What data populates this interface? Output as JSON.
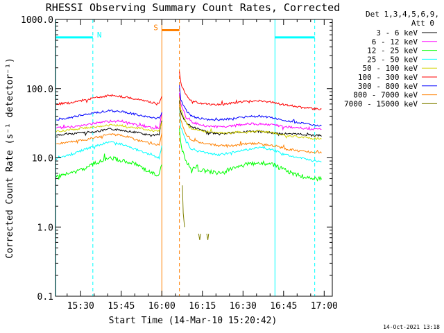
{
  "chart_data": {
    "type": "line",
    "title": "RHESSI Observing Summary Count Rates, Corrected",
    "xlabel": "Start Time (14-Mar-10 15:20:42)",
    "ylabel": "Corrected Count Rate (s⁻¹ detector⁻¹)",
    "yscale": "log",
    "ylim": [
      0.1,
      1000
    ],
    "xlim_min": [
      920.7,
      1023
    ],
    "x_unit": "minutes of day",
    "x_ticks": [
      {
        "value": 930,
        "label": "15:30"
      },
      {
        "value": 945,
        "label": "15:45"
      },
      {
        "value": 960,
        "label": "16:00"
      },
      {
        "value": 975,
        "label": "16:15"
      },
      {
        "value": 990,
        "label": "16:30"
      },
      {
        "value": 1005,
        "label": "16:45"
      },
      {
        "value": 1020,
        "label": "17:00"
      }
    ],
    "y_ticks": [
      {
        "value": 0.1,
        "label": "0.1"
      },
      {
        "value": 1,
        "label": "1.0"
      },
      {
        "value": 10,
        "label": "10.0"
      },
      {
        "value": 100,
        "label": "100.0"
      },
      {
        "value": 1000,
        "label": "1000.0"
      }
    ],
    "legend_header": [
      "Det 1,3,4,5,6,9,",
      "Att 0"
    ],
    "legend_placement": "right",
    "timestamp": "14-Oct-2021 13:18",
    "gap": [
      960,
      966.5
    ],
    "series": [
      {
        "name": "3 - 6 keV",
        "color": "#000000",
        "segments": [
          [
            [
              921,
              21
            ],
            [
              930,
              23
            ],
            [
              936,
              24
            ],
            [
              941,
              26
            ],
            [
              946,
              25
            ],
            [
              951,
              23
            ],
            [
              956,
              21
            ],
            [
              959,
              22
            ],
            [
              960,
              35
            ]
          ],
          [
            [
              966.5,
              70
            ],
            [
              967,
              45
            ],
            [
              969,
              32
            ],
            [
              971,
              28
            ],
            [
              976,
              24
            ],
            [
              981,
              22
            ],
            [
              986,
              23
            ],
            [
              991,
              24
            ],
            [
              996,
              24
            ],
            [
              1001,
              23
            ],
            [
              1006,
              22
            ],
            [
              1011,
              22
            ],
            [
              1016,
              21
            ],
            [
              1019,
              21
            ]
          ]
        ]
      },
      {
        "name": "6 - 12 keV",
        "color": "#ff00ff",
        "segments": [
          [
            [
              921,
              27
            ],
            [
              930,
              29
            ],
            [
              936,
              32
            ],
            [
              941,
              34
            ],
            [
              946,
              33
            ],
            [
              951,
              30
            ],
            [
              956,
              27
            ],
            [
              959,
              27
            ],
            [
              960,
              45
            ]
          ],
          [
            [
              966.5,
              90
            ],
            [
              967,
              60
            ],
            [
              969,
              38
            ],
            [
              971,
              33
            ],
            [
              976,
              29
            ],
            [
              981,
              28
            ],
            [
              986,
              29
            ],
            [
              991,
              31
            ],
            [
              996,
              31
            ],
            [
              1001,
              30
            ],
            [
              1006,
              28
            ],
            [
              1011,
              27
            ],
            [
              1016,
              26
            ],
            [
              1019,
              26
            ]
          ]
        ]
      },
      {
        "name": "12 - 25 keV",
        "color": "#00ff00",
        "segments": [
          [
            [
              921,
              5.5
            ],
            [
              926,
              6
            ],
            [
              931,
              7
            ],
            [
              936,
              8.5
            ],
            [
              941,
              10
            ],
            [
              946,
              9
            ],
            [
              951,
              8
            ],
            [
              956,
              6
            ],
            [
              959,
              5.5
            ],
            [
              960,
              8
            ]
          ],
          [
            [
              966.5,
              28
            ],
            [
              967,
              15
            ],
            [
              969,
              9
            ],
            [
              971,
              7
            ],
            [
              976,
              6.5
            ],
            [
              981,
              6
            ],
            [
              986,
              7
            ],
            [
              991,
              8
            ],
            [
              996,
              8.5
            ],
            [
              1001,
              8
            ],
            [
              1006,
              6.5
            ],
            [
              1011,
              5.5
            ],
            [
              1016,
              5
            ],
            [
              1019,
              5
            ]
          ]
        ]
      },
      {
        "name": "25 - 50 keV",
        "color": "#00ffff",
        "segments": [
          [
            [
              921,
              10
            ],
            [
              926,
              11
            ],
            [
              931,
              13
            ],
            [
              936,
              15
            ],
            [
              941,
              17
            ],
            [
              946,
              15.5
            ],
            [
              951,
              13
            ],
            [
              956,
              11
            ],
            [
              959,
              10
            ],
            [
              960,
              15
            ]
          ],
          [
            [
              966.5,
              50
            ],
            [
              967,
              28
            ],
            [
              969,
              17
            ],
            [
              971,
              13
            ],
            [
              976,
              12
            ],
            [
              981,
              11
            ],
            [
              986,
              12
            ],
            [
              991,
              13
            ],
            [
              996,
              14
            ],
            [
              1001,
              13
            ],
            [
              1006,
              11
            ],
            [
              1011,
              10
            ],
            [
              1016,
              9
            ],
            [
              1019,
              9
            ]
          ]
        ]
      },
      {
        "name": "50 - 100 keV",
        "color": "#d4d400",
        "segments": [
          [
            [
              921,
              24
            ],
            [
              926,
              25
            ],
            [
              931,
              27
            ],
            [
              936,
              28
            ],
            [
              941,
              30
            ],
            [
              946,
              29
            ],
            [
              951,
              27
            ],
            [
              956,
              25
            ],
            [
              959,
              24
            ],
            [
              960,
              33
            ]
          ],
          [
            [
              966.5,
              75
            ],
            [
              967,
              50
            ],
            [
              969,
              32
            ],
            [
              971,
              26
            ],
            [
              976,
              24
            ],
            [
              981,
              23
            ],
            [
              986,
              23
            ],
            [
              991,
              24
            ],
            [
              996,
              24
            ],
            [
              1001,
              23
            ],
            [
              1006,
              21
            ],
            [
              1011,
              20
            ],
            [
              1016,
              19
            ],
            [
              1019,
              19
            ]
          ]
        ]
      },
      {
        "name": "100 - 300 keV",
        "color": "#ff0000",
        "segments": [
          [
            [
              921,
              60
            ],
            [
              926,
              62
            ],
            [
              931,
              68
            ],
            [
              936,
              75
            ],
            [
              941,
              80
            ],
            [
              946,
              76
            ],
            [
              951,
              70
            ],
            [
              956,
              63
            ],
            [
              959,
              60
            ],
            [
              960,
              75
            ]
          ],
          [
            [
              966.5,
              180
            ],
            [
              967,
              120
            ],
            [
              969,
              80
            ],
            [
              971,
              66
            ],
            [
              976,
              60
            ],
            [
              981,
              59
            ],
            [
              986,
              62
            ],
            [
              991,
              66
            ],
            [
              996,
              67
            ],
            [
              1001,
              63
            ],
            [
              1006,
              58
            ],
            [
              1011,
              54
            ],
            [
              1016,
              51
            ],
            [
              1019,
              50
            ]
          ]
        ]
      },
      {
        "name": "300 - 800 keV",
        "color": "#0000ff",
        "segments": [
          [
            [
              921,
              36
            ],
            [
              926,
              38
            ],
            [
              931,
              42
            ],
            [
              936,
              45
            ],
            [
              941,
              48
            ],
            [
              946,
              46
            ],
            [
              951,
              42
            ],
            [
              956,
              38
            ],
            [
              959,
              37
            ],
            [
              960,
              45
            ]
          ],
          [
            [
              966.5,
              110
            ],
            [
              967,
              70
            ],
            [
              969,
              48
            ],
            [
              971,
              40
            ],
            [
              976,
              36
            ],
            [
              981,
              35
            ],
            [
              986,
              37
            ],
            [
              991,
              39
            ],
            [
              996,
              40
            ],
            [
              1001,
              38
            ],
            [
              1006,
              34
            ],
            [
              1011,
              32
            ],
            [
              1016,
              30
            ],
            [
              1019,
              29
            ]
          ]
        ]
      },
      {
        "name": "800 - 7000 keV",
        "color": "#ff8000",
        "segments": [
          [
            [
              921,
              16
            ],
            [
              926,
              17
            ],
            [
              931,
              18
            ],
            [
              936,
              20
            ],
            [
              941,
              22
            ],
            [
              946,
              21
            ],
            [
              951,
              18
            ],
            [
              956,
              16
            ],
            [
              959,
              15.5
            ],
            [
              960,
              22
            ]
          ],
          [
            [
              966.5,
              60
            ],
            [
              967,
              35
            ],
            [
              969,
              22
            ],
            [
              971,
              18
            ],
            [
              976,
              16
            ],
            [
              981,
              15
            ],
            [
              986,
              15
            ],
            [
              991,
              16
            ],
            [
              996,
              16
            ],
            [
              1001,
              15
            ],
            [
              1006,
              13.5
            ],
            [
              1011,
              12.5
            ],
            [
              1016,
              12
            ],
            [
              1019,
              12
            ]
          ]
        ]
      },
      {
        "name": "7000 - 15000 keV",
        "color": "#808000",
        "segments": [
          [
            [
              967.6,
              4
            ],
            [
              967.9,
              1.6
            ],
            [
              968.4,
              1
            ]
          ],
          [
            [
              973.6,
              0.8
            ],
            [
              974,
              0.65
            ],
            [
              974.3,
              0.8
            ]
          ],
          [
            [
              976.6,
              0.8
            ],
            [
              977,
              0.65
            ],
            [
              977.3,
              0.8
            ]
          ]
        ]
      }
    ],
    "bars": [
      {
        "label": "N",
        "color": "#00ffff",
        "y": 550,
        "x_ranges": [
          [
            920.7,
            934.5
          ],
          [
            1001.8,
            1016.5
          ]
        ]
      },
      {
        "label": "S",
        "color": "#ff8000",
        "y": 700,
        "x_ranges": [
          [
            960,
            966.5
          ]
        ]
      }
    ],
    "vlines": [
      {
        "x": 920.8,
        "color": "#00ffff",
        "style": "solid"
      },
      {
        "x": 934.5,
        "color": "#00ffff",
        "style": "dashed"
      },
      {
        "x": 960,
        "color": "#ff8000",
        "style": "solid"
      },
      {
        "x": 966.5,
        "color": "#ff8000",
        "style": "dashed"
      },
      {
        "x": 1001.8,
        "color": "#00ffff",
        "style": "solid"
      },
      {
        "x": 1016.5,
        "color": "#00ffff",
        "style": "dashed"
      }
    ]
  }
}
